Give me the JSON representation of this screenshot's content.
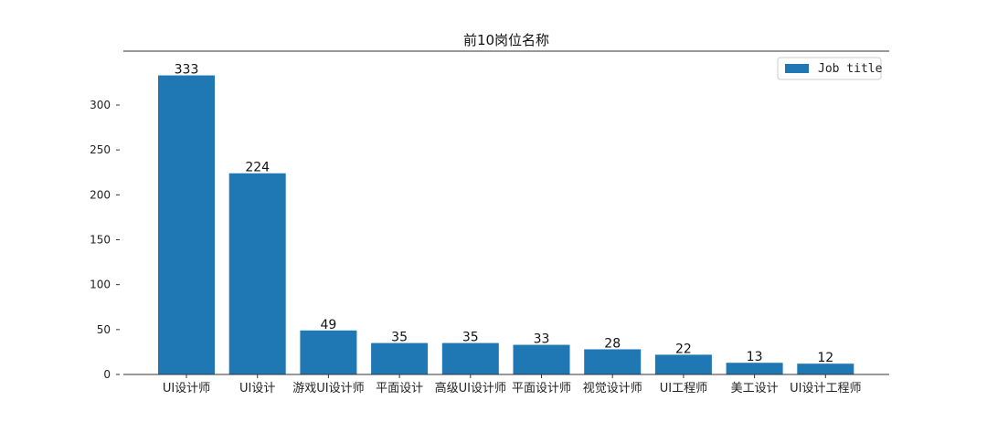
{
  "chart_data": {
    "type": "bar",
    "title": "前10岗位名称",
    "xlabel": "",
    "ylabel": "",
    "categories": [
      "UI设计师",
      "UI设计",
      "游戏UI设计师",
      "平面设计",
      "高级UI设计师",
      "平面设计师",
      "视觉设计师",
      "UI工程师",
      "美工设计",
      "UI设计工程师"
    ],
    "series": [
      {
        "name": "Job title",
        "values": [
          333,
          224,
          49,
          35,
          35,
          33,
          28,
          22,
          13,
          12
        ]
      }
    ],
    "ylim": [
      0,
      360
    ],
    "yticks": [
      0,
      50,
      100,
      150,
      200,
      250,
      300
    ],
    "bar_color": "#1f77b4",
    "grid": false,
    "legend_position": "top-right",
    "show_data_labels": true
  }
}
